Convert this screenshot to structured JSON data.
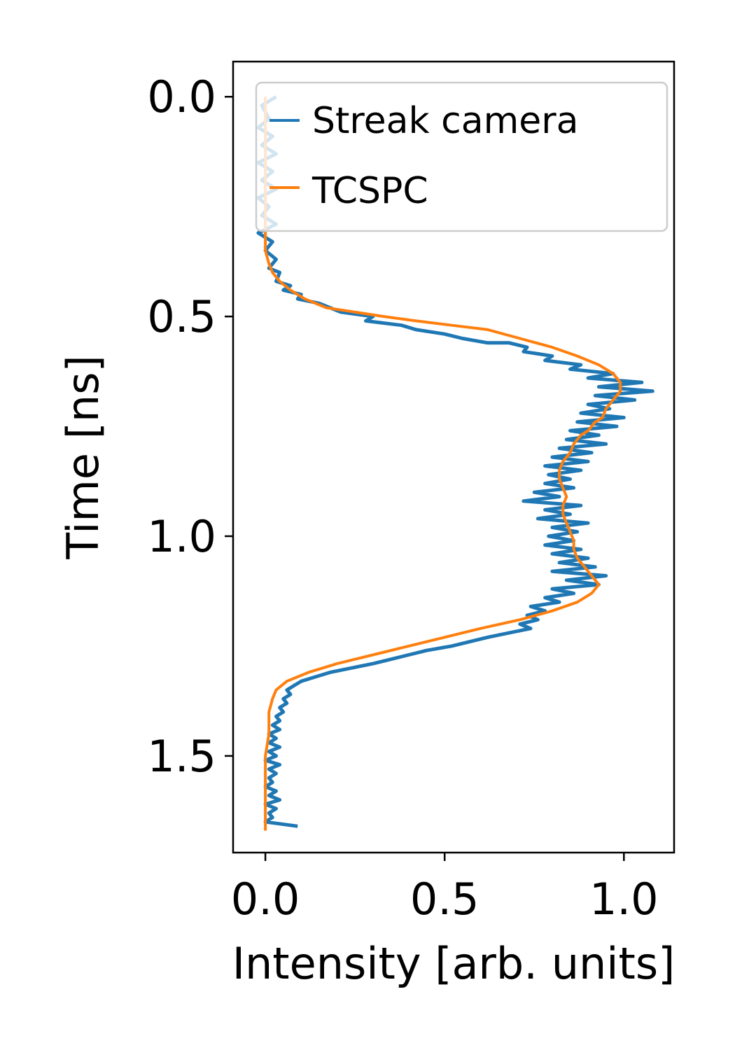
{
  "chart_data": {
    "type": "line",
    "title": "",
    "xlabel": "Intensity [arb. units]",
    "ylabel": "Time [ns]",
    "xlim": [
      -0.09,
      1.14
    ],
    "ylim": [
      1.72,
      -0.08
    ],
    "y_inverted": true,
    "grid": false,
    "legend_position": "top-right",
    "xticks": [
      0.0,
      0.5,
      1.0
    ],
    "xtick_labels": [
      "0.0",
      "0.5",
      "1.0"
    ],
    "yticks": [
      0.0,
      0.5,
      1.0,
      1.5
    ],
    "ytick_labels": [
      "0.0",
      "0.5",
      "1.0",
      "1.5"
    ],
    "series": [
      {
        "name": "Streak camera",
        "color": "#1f77b4",
        "points": [
          [
            0.03,
            0.0
          ],
          [
            -0.01,
            0.02
          ],
          [
            0.01,
            0.05
          ],
          [
            -0.02,
            0.07
          ],
          [
            0.02,
            0.09
          ],
          [
            -0.01,
            0.11
          ],
          [
            0.03,
            0.13
          ],
          [
            -0.02,
            0.15
          ],
          [
            0.02,
            0.17
          ],
          [
            -0.01,
            0.19
          ],
          [
            0.03,
            0.21
          ],
          [
            -0.02,
            0.23
          ],
          [
            0.01,
            0.25
          ],
          [
            -0.01,
            0.27
          ],
          [
            0.03,
            0.29
          ],
          [
            -0.02,
            0.31
          ],
          [
            0.02,
            0.33
          ],
          [
            0.0,
            0.35
          ],
          [
            0.03,
            0.37
          ],
          [
            0.01,
            0.39
          ],
          [
            0.04,
            0.4
          ],
          [
            0.03,
            0.42
          ],
          [
            0.07,
            0.43
          ],
          [
            0.05,
            0.44
          ],
          [
            0.1,
            0.45
          ],
          [
            0.09,
            0.46
          ],
          [
            0.15,
            0.47
          ],
          [
            0.18,
            0.48
          ],
          [
            0.21,
            0.49
          ],
          [
            0.3,
            0.5
          ],
          [
            0.28,
            0.51
          ],
          [
            0.38,
            0.52
          ],
          [
            0.42,
            0.53
          ],
          [
            0.5,
            0.54
          ],
          [
            0.55,
            0.55
          ],
          [
            0.62,
            0.56
          ],
          [
            0.68,
            0.56
          ],
          [
            0.73,
            0.57
          ],
          [
            0.72,
            0.58
          ],
          [
            0.8,
            0.59
          ],
          [
            0.78,
            0.6
          ],
          [
            0.88,
            0.61
          ],
          [
            0.85,
            0.62
          ],
          [
            0.97,
            0.63
          ],
          [
            0.9,
            0.64
          ],
          [
            1.05,
            0.65
          ],
          [
            0.93,
            0.66
          ],
          [
            1.08,
            0.67
          ],
          [
            0.92,
            0.68
          ],
          [
            1.03,
            0.69
          ],
          [
            0.9,
            0.7
          ],
          [
            0.96,
            0.71
          ],
          [
            0.88,
            0.72
          ],
          [
            1.0,
            0.73
          ],
          [
            0.87,
            0.74
          ],
          [
            0.98,
            0.75
          ],
          [
            0.85,
            0.76
          ],
          [
            0.93,
            0.77
          ],
          [
            0.84,
            0.78
          ],
          [
            0.95,
            0.79
          ],
          [
            0.82,
            0.8
          ],
          [
            0.91,
            0.81
          ],
          [
            0.8,
            0.82
          ],
          [
            0.9,
            0.83
          ],
          [
            0.78,
            0.84
          ],
          [
            0.88,
            0.85
          ],
          [
            0.79,
            0.86
          ],
          [
            0.85,
            0.87
          ],
          [
            0.78,
            0.88
          ],
          [
            0.86,
            0.89
          ],
          [
            0.75,
            0.9
          ],
          [
            0.82,
            0.91
          ],
          [
            0.72,
            0.92
          ],
          [
            0.88,
            0.93
          ],
          [
            0.78,
            0.94
          ],
          [
            0.85,
            0.95
          ],
          [
            0.76,
            0.96
          ],
          [
            0.9,
            0.97
          ],
          [
            0.8,
            0.98
          ],
          [
            0.87,
            0.99
          ],
          [
            0.79,
            1.0
          ],
          [
            0.86,
            1.01
          ],
          [
            0.78,
            1.02
          ],
          [
            0.88,
            1.03
          ],
          [
            0.8,
            1.04
          ],
          [
            0.9,
            1.05
          ],
          [
            0.82,
            1.06
          ],
          [
            0.92,
            1.07
          ],
          [
            0.8,
            1.08
          ],
          [
            0.95,
            1.09
          ],
          [
            0.84,
            1.1
          ],
          [
            0.93,
            1.11
          ],
          [
            0.8,
            1.12
          ],
          [
            0.86,
            1.13
          ],
          [
            0.78,
            1.14
          ],
          [
            0.82,
            1.15
          ],
          [
            0.74,
            1.16
          ],
          [
            0.78,
            1.17
          ],
          [
            0.73,
            1.18
          ],
          [
            0.76,
            1.19
          ],
          [
            0.71,
            1.2
          ],
          [
            0.74,
            1.21
          ],
          [
            0.68,
            1.22
          ],
          [
            0.62,
            1.23
          ],
          [
            0.57,
            1.24
          ],
          [
            0.52,
            1.25
          ],
          [
            0.45,
            1.26
          ],
          [
            0.4,
            1.27
          ],
          [
            0.35,
            1.28
          ],
          [
            0.3,
            1.29
          ],
          [
            0.24,
            1.3
          ],
          [
            0.18,
            1.31
          ],
          [
            0.14,
            1.32
          ],
          [
            0.1,
            1.33
          ],
          [
            0.08,
            1.34
          ],
          [
            0.06,
            1.35
          ],
          [
            0.07,
            1.36
          ],
          [
            0.05,
            1.37
          ],
          [
            0.06,
            1.38
          ],
          [
            0.04,
            1.39
          ],
          [
            0.05,
            1.4
          ],
          [
            0.03,
            1.41
          ],
          [
            0.04,
            1.42
          ],
          [
            0.02,
            1.43
          ],
          [
            0.04,
            1.44
          ],
          [
            0.01,
            1.45
          ],
          [
            0.03,
            1.46
          ],
          [
            0.01,
            1.47
          ],
          [
            0.04,
            1.48
          ],
          [
            0.01,
            1.49
          ],
          [
            0.03,
            1.5
          ],
          [
            0.0,
            1.51
          ],
          [
            0.04,
            1.52
          ],
          [
            0.01,
            1.53
          ],
          [
            0.03,
            1.54
          ],
          [
            0.01,
            1.55
          ],
          [
            0.02,
            1.56
          ],
          [
            0.0,
            1.57
          ],
          [
            0.03,
            1.58
          ],
          [
            0.01,
            1.59
          ],
          [
            0.04,
            1.6
          ],
          [
            0.0,
            1.61
          ],
          [
            0.03,
            1.62
          ],
          [
            0.01,
            1.63
          ],
          [
            0.02,
            1.64
          ],
          [
            0.0,
            1.65
          ],
          [
            0.09,
            1.66
          ]
        ]
      },
      {
        "name": "TCSPC",
        "color": "#ff7f0e",
        "points": [
          [
            0.0,
            0.0
          ],
          [
            0.0,
            0.1
          ],
          [
            0.0,
            0.2
          ],
          [
            0.0,
            0.3
          ],
          [
            0.0,
            0.35
          ],
          [
            0.01,
            0.38
          ],
          [
            0.02,
            0.4
          ],
          [
            0.04,
            0.42
          ],
          [
            0.07,
            0.44
          ],
          [
            0.11,
            0.46
          ],
          [
            0.17,
            0.48
          ],
          [
            0.25,
            0.49
          ],
          [
            0.33,
            0.5
          ],
          [
            0.42,
            0.51
          ],
          [
            0.52,
            0.52
          ],
          [
            0.62,
            0.53
          ],
          [
            0.71,
            0.55
          ],
          [
            0.8,
            0.57
          ],
          [
            0.87,
            0.59
          ],
          [
            0.93,
            0.61
          ],
          [
            0.97,
            0.63
          ],
          [
            0.99,
            0.65
          ],
          [
            0.99,
            0.67
          ],
          [
            0.97,
            0.69
          ],
          [
            0.95,
            0.71
          ],
          [
            0.94,
            0.73
          ],
          [
            0.92,
            0.74
          ],
          [
            0.9,
            0.76
          ],
          [
            0.88,
            0.77
          ],
          [
            0.87,
            0.78
          ],
          [
            0.86,
            0.79
          ],
          [
            0.85,
            0.81
          ],
          [
            0.83,
            0.83
          ],
          [
            0.82,
            0.85
          ],
          [
            0.82,
            0.87
          ],
          [
            0.83,
            0.89
          ],
          [
            0.84,
            0.91
          ],
          [
            0.83,
            0.93
          ],
          [
            0.83,
            0.95
          ],
          [
            0.84,
            0.97
          ],
          [
            0.85,
            0.99
          ],
          [
            0.86,
            1.01
          ],
          [
            0.86,
            1.03
          ],
          [
            0.87,
            1.05
          ],
          [
            0.89,
            1.07
          ],
          [
            0.91,
            1.09
          ],
          [
            0.93,
            1.11
          ],
          [
            0.91,
            1.13
          ],
          [
            0.87,
            1.15
          ],
          [
            0.8,
            1.17
          ],
          [
            0.71,
            1.19
          ],
          [
            0.6,
            1.21
          ],
          [
            0.5,
            1.23
          ],
          [
            0.4,
            1.25
          ],
          [
            0.3,
            1.27
          ],
          [
            0.2,
            1.29
          ],
          [
            0.12,
            1.31
          ],
          [
            0.06,
            1.33
          ],
          [
            0.03,
            1.35
          ],
          [
            0.02,
            1.37
          ],
          [
            0.01,
            1.4
          ],
          [
            0.01,
            1.45
          ],
          [
            0.0,
            1.5
          ],
          [
            0.0,
            1.55
          ],
          [
            0.0,
            1.6
          ],
          [
            0.0,
            1.67
          ]
        ]
      }
    ]
  }
}
